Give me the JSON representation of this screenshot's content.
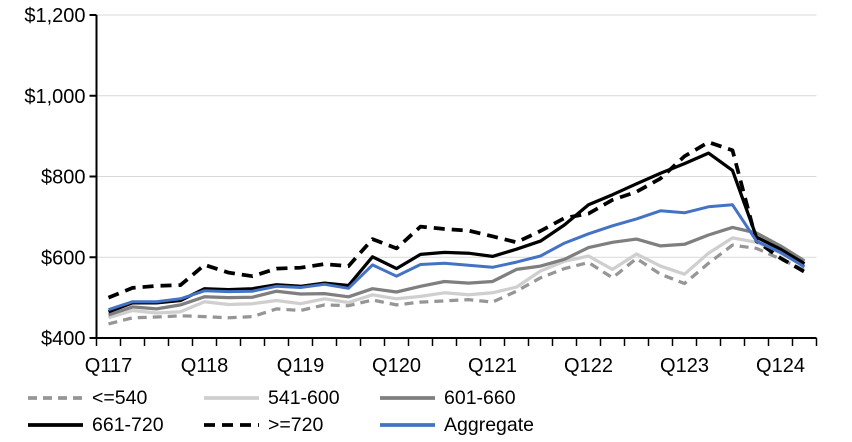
{
  "chart_data": {
    "type": "line",
    "title": "",
    "xlabel": "",
    "ylabel": "",
    "background": "#ffffff",
    "grid": true,
    "gridline_color": "#d9d9d9",
    "axis_color": "#000000",
    "y_axis": {
      "min": 400,
      "max": 1200,
      "step": 200,
      "tick_labels": [
        "$400",
        "$600",
        "$800",
        "$1,000",
        "$1,200"
      ]
    },
    "x_axis": {
      "tick_labels": [
        "Q117",
        "Q118",
        "Q119",
        "Q120",
        "Q121",
        "Q122",
        "Q123",
        "Q124"
      ],
      "tick_label_indices": [
        0,
        4,
        8,
        12,
        16,
        20,
        24,
        28
      ]
    },
    "x": [
      "2017Q1",
      "2017Q2",
      "2017Q3",
      "2017Q4",
      "2018Q1",
      "2018Q2",
      "2018Q3",
      "2018Q4",
      "2019Q1",
      "2019Q2",
      "2019Q3",
      "2019Q4",
      "2020Q1",
      "2020Q2",
      "2020Q3",
      "2020Q4",
      "2021Q1",
      "2021Q2",
      "2021Q3",
      "2021Q4",
      "2022Q1",
      "2022Q2",
      "2022Q3",
      "2022Q4",
      "2023Q1",
      "2023Q2",
      "2023Q3",
      "2023Q4",
      "2024Q1",
      "2024Q2"
    ],
    "series": [
      {
        "name": "<=540",
        "color": "#969696",
        "dash": "9 6",
        "width": 3.25,
        "values": [
          435,
          450,
          452,
          455,
          453,
          450,
          453,
          472,
          468,
          482,
          480,
          494,
          482,
          489,
          492,
          495,
          489,
          516,
          549,
          572,
          587,
          549,
          597,
          558,
          535,
          585,
          630,
          622,
          596,
          568
        ]
      },
      {
        "name": "541-600",
        "color": "#d0cece",
        "dash": null,
        "width": 3.25,
        "values": [
          450,
          468,
          462,
          465,
          490,
          483,
          485,
          493,
          485,
          497,
          488,
          507,
          497,
          503,
          512,
          507,
          512,
          526,
          566,
          590,
          603,
          570,
          608,
          578,
          558,
          610,
          648,
          637,
          610,
          578
        ]
      },
      {
        "name": "601-660",
        "color": "#7f7f7f",
        "dash": null,
        "width": 3.25,
        "values": [
          457,
          477,
          472,
          482,
          502,
          500,
          501,
          516,
          509,
          510,
          502,
          522,
          514,
          528,
          540,
          536,
          540,
          570,
          578,
          595,
          624,
          637,
          645,
          628,
          632,
          655,
          674,
          660,
          628,
          591
        ]
      },
      {
        "name": "661-720",
        "color": "#000000",
        "dash": null,
        "width": 3.25,
        "values": [
          465,
          487,
          487,
          493,
          522,
          520,
          522,
          532,
          528,
          536,
          530,
          601,
          572,
          607,
          612,
          610,
          602,
          620,
          640,
          680,
          730,
          755,
          782,
          808,
          832,
          858,
          815,
          650,
          620,
          584
        ]
      },
      {
        "name": ">=720",
        "color": "#000000",
        "dash": "11 7",
        "width": 3.75,
        "values": [
          500,
          524,
          529,
          531,
          581,
          562,
          553,
          572,
          574,
          583,
          578,
          645,
          622,
          676,
          670,
          666,
          652,
          637,
          665,
          697,
          708,
          742,
          762,
          795,
          850,
          885,
          865,
          640,
          598,
          564
        ]
      },
      {
        "name": "Aggregate",
        "color": "#4472c4",
        "dash": null,
        "width": 3,
        "values": [
          470,
          490,
          490,
          497,
          517,
          515,
          516,
          528,
          525,
          533,
          523,
          581,
          553,
          582,
          585,
          580,
          575,
          588,
          603,
          635,
          658,
          678,
          695,
          715,
          710,
          725,
          730,
          640,
          612,
          576
        ]
      }
    ],
    "legend": {
      "position": "bottom",
      "rows": [
        [
          0,
          1,
          2
        ],
        [
          3,
          4,
          5
        ]
      ]
    }
  }
}
